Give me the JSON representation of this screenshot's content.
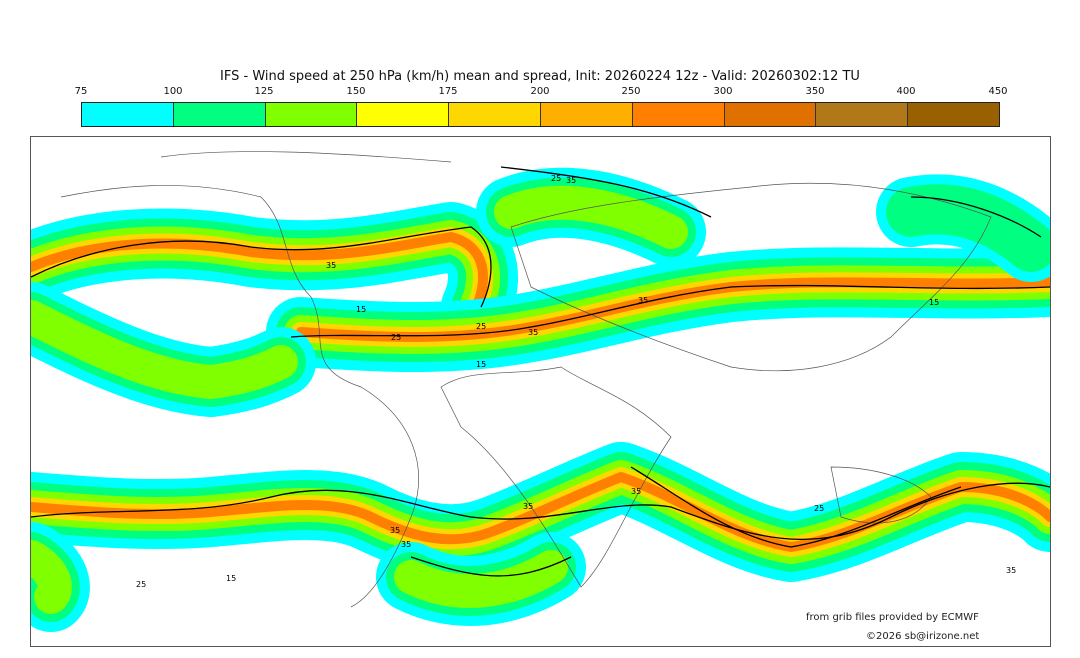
{
  "title": "IFS - Wind speed at 250 hPa (km/h) mean and spread, Init: 20260224 12z - Valid: 20260302:12 TU",
  "legend": {
    "ticks": [
      "75",
      "100",
      "125",
      "150",
      "175",
      "200",
      "250",
      "300",
      "350",
      "400",
      "450"
    ],
    "colors": [
      "#00ffff",
      "#00ff80",
      "#80ff00",
      "#ffff00",
      "#ffd700",
      "#ffaf00",
      "#ff8000",
      "#e07000",
      "#b07818",
      "#986000"
    ]
  },
  "contour_labels": [
    "35",
    "35",
    "25",
    "15",
    "25",
    "35",
    "25",
    "15",
    "35",
    "15",
    "25",
    "35",
    "35",
    "35",
    "35",
    "25",
    "15",
    "35"
  ],
  "credit": "from grib files provided by ECMWF",
  "copyright": "©2026 sb@irizone.net"
}
